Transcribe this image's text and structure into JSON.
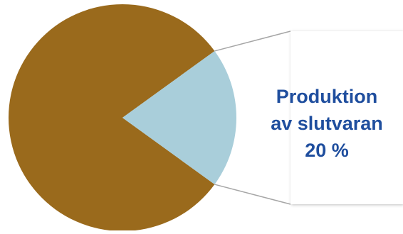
{
  "chart_data": {
    "type": "pie",
    "slices": [
      {
        "name": "",
        "value": 80,
        "color": "#9a6a1c"
      },
      {
        "name": "Produktion av slutvaran",
        "value": 20,
        "color": "#a9ceda"
      }
    ]
  },
  "callout": {
    "line1": "Produktion",
    "line2": "av slutvaran",
    "line3": "20 %"
  }
}
